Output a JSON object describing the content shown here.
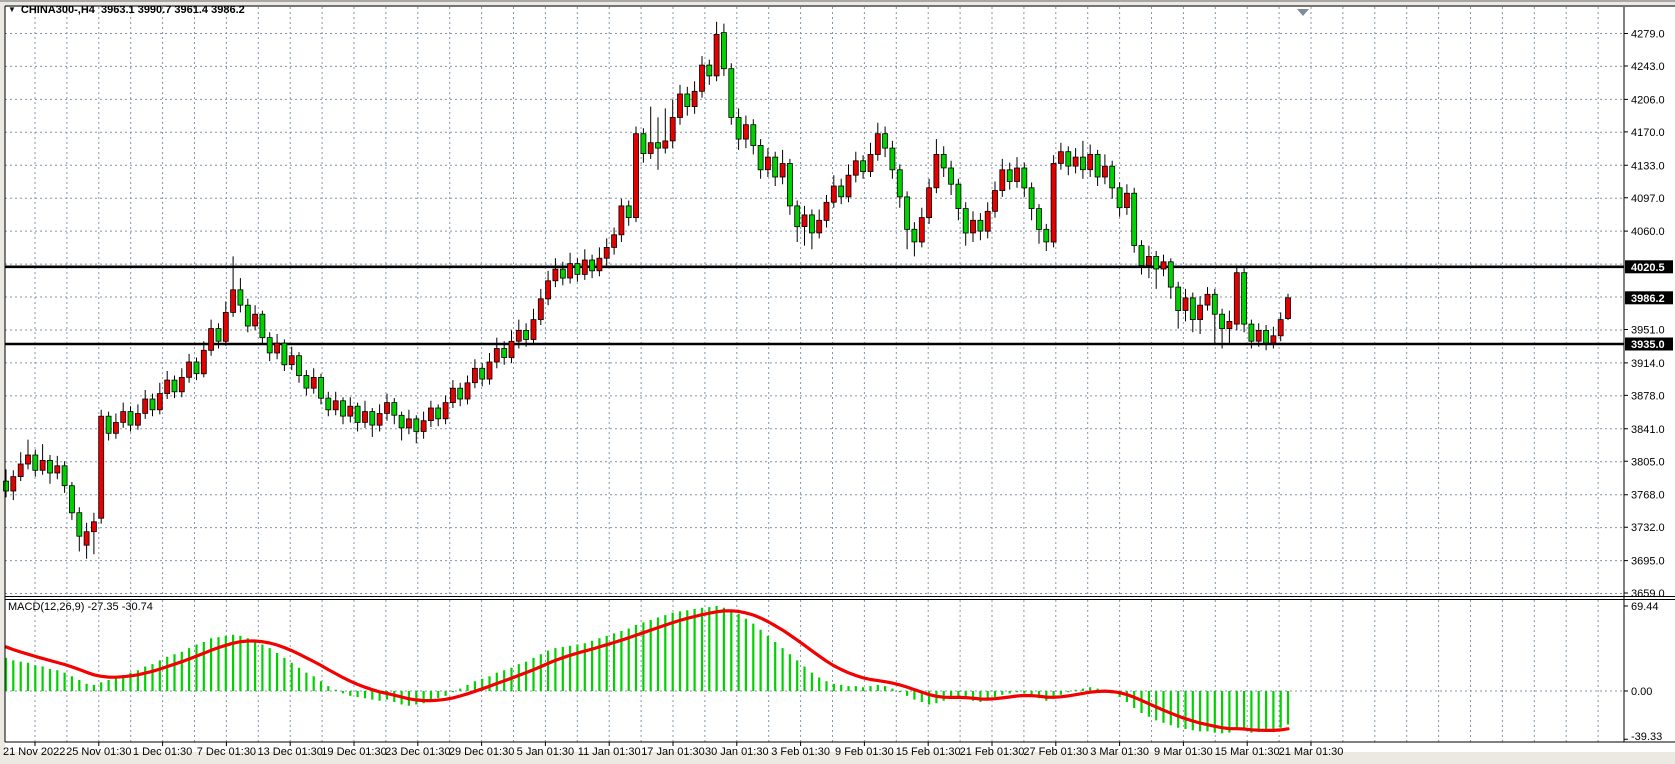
{
  "window": {
    "title": "CHINA300-,H4  3963.1 3990.7 3961.4 3986.2",
    "symbol": "CHINA300-",
    "timeframe": "H4",
    "last_ohlc": {
      "open": 3963.1,
      "high": 3990.7,
      "low": 3961.4,
      "close": 3986.2
    }
  },
  "indicator_panel": {
    "label": "MACD(12,26,9) -27.35 -30.74",
    "macd_value": -27.35,
    "signal_value": -30.74,
    "axis_ticks": [
      {
        "label": "69.44",
        "value": 69.44
      },
      {
        "label": "0.00",
        "value": 0
      },
      {
        "label": "-39.33",
        "value": -39.33
      }
    ]
  },
  "price_axis": {
    "ticks": [
      {
        "label": "4279.0",
        "value": 4279
      },
      {
        "label": "4243.0",
        "value": 4243
      },
      {
        "label": "4206.0",
        "value": 4206
      },
      {
        "label": "4170.0",
        "value": 4170
      },
      {
        "label": "4133.0",
        "value": 4133
      },
      {
        "label": "4097.0",
        "value": 4097
      },
      {
        "label": "4060.0",
        "value": 4060
      },
      {
        "label": "3951.0",
        "value": 3951
      },
      {
        "label": "3914.0",
        "value": 3914
      },
      {
        "label": "3878.0",
        "value": 3878
      },
      {
        "label": "3841.0",
        "value": 3841
      },
      {
        "label": "3805.0",
        "value": 3805
      },
      {
        "label": "3768.0",
        "value": 3768
      },
      {
        "label": "3732.0",
        "value": 3732
      },
      {
        "label": "3695.0",
        "value": 3695
      },
      {
        "label": "3659.0",
        "value": 3659
      }
    ],
    "badges": [
      {
        "label": "4020.5",
        "value": 4020.5,
        "kind": "hline"
      },
      {
        "label": "3986.2",
        "value": 3986.2,
        "kind": "bid"
      },
      {
        "label": "3935.0",
        "value": 3935.0,
        "kind": "hline"
      }
    ]
  },
  "time_axis": {
    "labels": [
      "21 Nov 2022",
      "25 Nov 01:30",
      "1 Dec 01:30",
      "7 Dec 01:30",
      "13 Dec 01:30",
      "19 Dec 01:30",
      "23 Dec 01:30",
      "29 Dec 01:30",
      "5 Jan 01:30",
      "11 Jan 01:30",
      "17 Jan 01:30",
      "30 Jan 01:30",
      "3 Feb 01:30",
      "9 Feb 01:30",
      "15 Feb 01:30",
      "21 Feb 01:30",
      "27 Feb 01:30",
      "3 Mar 01:30",
      "9 Mar 01:30",
      "15 Mar 01:30",
      "21 Mar 01:30"
    ]
  },
  "colors": {
    "up_body": "#e60000",
    "down_body": "#00d200",
    "wick": "#000000",
    "grid": "#8496a8",
    "frame": "#ece9e2",
    "panel_bg": "#ffffff",
    "hline": "#000000",
    "badge_bg": "#000000",
    "badge_text": "#ffffff",
    "histogram": "#00d200",
    "signal_line": "#f30000",
    "shift_marker": "#7f8b99",
    "border": "#000000"
  },
  "chart_data": {
    "type": "candlestick",
    "title": "CHINA300- H4 candlestick chart with MACD(12,26,9)",
    "symbol": "CHINA300-",
    "timeframe": "H4",
    "ylim": [
      3658.5,
      4305
    ],
    "grid": true,
    "price_grid": [
      4279,
      4242.5,
      4206,
      4169.5,
      4133,
      4096.5,
      4060,
      4023.5,
      3987,
      3950.5,
      3914,
      3877.5,
      3841,
      3804.5,
      3768,
      3731.5,
      3695,
      3658.5
    ],
    "hlines": [
      4020.5,
      3935.0
    ],
    "last_price": 3986.2,
    "candles": [
      [
        3783,
        3796,
        3765,
        3772
      ],
      [
        3772,
        3795,
        3762,
        3788
      ],
      [
        3788,
        3815,
        3783,
        3802
      ],
      [
        3802,
        3829,
        3796,
        3812
      ],
      [
        3812,
        3818,
        3788,
        3795
      ],
      [
        3795,
        3824,
        3790,
        3806
      ],
      [
        3806,
        3812,
        3780,
        3792
      ],
      [
        3792,
        3811,
        3785,
        3800
      ],
      [
        3800,
        3805,
        3770,
        3778
      ],
      [
        3778,
        3782,
        3740,
        3748
      ],
      [
        3748,
        3754,
        3705,
        3722
      ],
      [
        3712,
        3737,
        3697,
        3727
      ],
      [
        3727,
        3748,
        3702,
        3738
      ],
      [
        3742,
        3862,
        3736,
        3855
      ],
      [
        3855,
        3860,
        3828,
        3836
      ],
      [
        3836,
        3858,
        3830,
        3848
      ],
      [
        3848,
        3870,
        3842,
        3860
      ],
      [
        3860,
        3866,
        3838,
        3845
      ],
      [
        3845,
        3868,
        3840,
        3858
      ],
      [
        3858,
        3884,
        3852,
        3874
      ],
      [
        3874,
        3880,
        3855,
        3862
      ],
      [
        3862,
        3892,
        3857,
        3880
      ],
      [
        3880,
        3905,
        3874,
        3895
      ],
      [
        3895,
        3900,
        3875,
        3882
      ],
      [
        3882,
        3908,
        3876,
        3898
      ],
      [
        3898,
        3924,
        3892,
        3915
      ],
      [
        3915,
        3920,
        3895,
        3902
      ],
      [
        3902,
        3938,
        3898,
        3928
      ],
      [
        3928,
        3962,
        3922,
        3952
      ],
      [
        3952,
        3958,
        3930,
        3938
      ],
      [
        3938,
        3982,
        3933,
        3970
      ],
      [
        3970,
        4032,
        3965,
        3995
      ],
      [
        3995,
        4008,
        3970,
        3978
      ],
      [
        3978,
        3985,
        3948,
        3955
      ],
      [
        3955,
        3978,
        3950,
        3968
      ],
      [
        3968,
        3972,
        3935,
        3942
      ],
      [
        3942,
        3948,
        3916,
        3925
      ],
      [
        3925,
        3946,
        3918,
        3936
      ],
      [
        3936,
        3940,
        3905,
        3912
      ],
      [
        3912,
        3932,
        3906,
        3922
      ],
      [
        3922,
        3926,
        3892,
        3900
      ],
      [
        3900,
        3906,
        3878,
        3886
      ],
      [
        3886,
        3908,
        3880,
        3898
      ],
      [
        3898,
        3902,
        3868,
        3875
      ],
      [
        3875,
        3882,
        3855,
        3862
      ],
      [
        3862,
        3882,
        3856,
        3872
      ],
      [
        3872,
        3876,
        3846,
        3855
      ],
      [
        3855,
        3876,
        3848,
        3866
      ],
      [
        3866,
        3870,
        3838,
        3848
      ],
      [
        3848,
        3872,
        3842,
        3860
      ],
      [
        3860,
        3864,
        3832,
        3845
      ],
      [
        3845,
        3868,
        3838,
        3858
      ],
      [
        3858,
        3880,
        3850,
        3870
      ],
      [
        3870,
        3875,
        3846,
        3856
      ],
      [
        3856,
        3860,
        3828,
        3842
      ],
      [
        3842,
        3862,
        3835,
        3852
      ],
      [
        3852,
        3856,
        3825,
        3838
      ],
      [
        3838,
        3860,
        3830,
        3850
      ],
      [
        3850,
        3872,
        3843,
        3864
      ],
      [
        3864,
        3868,
        3844,
        3852
      ],
      [
        3852,
        3878,
        3846,
        3870
      ],
      [
        3870,
        3895,
        3864,
        3886
      ],
      [
        3886,
        3892,
        3866,
        3874
      ],
      [
        3874,
        3900,
        3868,
        3892
      ],
      [
        3892,
        3918,
        3886,
        3908
      ],
      [
        3908,
        3914,
        3888,
        3896
      ],
      [
        3896,
        3925,
        3890,
        3915
      ],
      [
        3915,
        3942,
        3908,
        3930
      ],
      [
        3930,
        3938,
        3912,
        3920
      ],
      [
        3920,
        3950,
        3914,
        3938
      ],
      [
        3938,
        3962,
        3930,
        3950
      ],
      [
        3950,
        3958,
        3932,
        3940
      ],
      [
        3940,
        3974,
        3935,
        3962
      ],
      [
        3962,
        3996,
        3956,
        3985
      ],
      [
        3985,
        4016,
        3978,
        4005
      ],
      [
        4005,
        4030,
        3998,
        4018
      ],
      [
        4018,
        4026,
        4000,
        4008
      ],
      [
        4008,
        4036,
        4002,
        4024
      ],
      [
        4024,
        4030,
        4004,
        4012
      ],
      [
        4012,
        4040,
        4006,
        4028
      ],
      [
        4028,
        4034,
        4008,
        4016
      ],
      [
        4016,
        4042,
        4010,
        4030
      ],
      [
        4030,
        4052,
        4022,
        4042
      ],
      [
        4042,
        4064,
        4034,
        4056
      ],
      [
        4056,
        4096,
        4048,
        4088
      ],
      [
        4088,
        4094,
        4066,
        4075
      ],
      [
        4075,
        4176,
        4070,
        4168
      ],
      [
        4168,
        4174,
        4136,
        4146
      ],
      [
        4146,
        4198,
        4140,
        4158
      ],
      [
        4158,
        4186,
        4128,
        4152
      ],
      [
        4152,
        4196,
        4146,
        4160
      ],
      [
        4160,
        4206,
        4152,
        4186
      ],
      [
        4186,
        4222,
        4178,
        4212
      ],
      [
        4212,
        4220,
        4188,
        4198
      ],
      [
        4198,
        4226,
        4190,
        4215
      ],
      [
        4215,
        4254,
        4208,
        4244
      ],
      [
        4244,
        4250,
        4222,
        4232
      ],
      [
        4232,
        4292,
        4226,
        4278
      ],
      [
        4280,
        4290,
        4232,
        4240
      ],
      [
        4240,
        4246,
        4178,
        4186
      ],
      [
        4186,
        4196,
        4150,
        4162
      ],
      [
        4162,
        4188,
        4152,
        4178
      ],
      [
        4178,
        4184,
        4145,
        4155
      ],
      [
        4155,
        4162,
        4118,
        4128
      ],
      [
        4128,
        4152,
        4120,
        4142
      ],
      [
        4142,
        4148,
        4110,
        4120
      ],
      [
        4120,
        4150,
        4112,
        4135
      ],
      [
        4135,
        4140,
        4078,
        4088
      ],
      [
        4088,
        4094,
        4048,
        4065
      ],
      [
        4065,
        4088,
        4044,
        4078
      ],
      [
        4078,
        4084,
        4040,
        4058
      ],
      [
        4058,
        4084,
        4052,
        4072
      ],
      [
        4072,
        4100,
        4064,
        4092
      ],
      [
        4092,
        4122,
        4086,
        4110
      ],
      [
        4110,
        4118,
        4090,
        4098
      ],
      [
        4098,
        4134,
        4092,
        4122
      ],
      [
        4122,
        4148,
        4114,
        4138
      ],
      [
        4138,
        4144,
        4118,
        4126
      ],
      [
        4126,
        4158,
        4120,
        4145
      ],
      [
        4145,
        4180,
        4138,
        4168
      ],
      [
        4168,
        4176,
        4142,
        4152
      ],
      [
        4152,
        4160,
        4118,
        4128
      ],
      [
        4128,
        4134,
        4086,
        4098
      ],
      [
        4098,
        4104,
        4040,
        4062
      ],
      [
        4062,
        4070,
        4032,
        4048
      ],
      [
        4048,
        4086,
        4042,
        4075
      ],
      [
        4075,
        4118,
        4068,
        4108
      ],
      [
        4108,
        4162,
        4102,
        4145
      ],
      [
        4145,
        4154,
        4120,
        4130
      ],
      [
        4130,
        4138,
        4100,
        4112
      ],
      [
        4112,
        4118,
        4072,
        4085
      ],
      [
        4085,
        4092,
        4044,
        4058
      ],
      [
        4058,
        4082,
        4048,
        4072
      ],
      [
        4072,
        4080,
        4050,
        4060
      ],
      [
        4060,
        4092,
        4052,
        4082
      ],
      [
        4082,
        4115,
        4075,
        4105
      ],
      [
        4105,
        4140,
        4098,
        4128
      ],
      [
        4128,
        4136,
        4106,
        4115
      ],
      [
        4115,
        4142,
        4108,
        4130
      ],
      [
        4130,
        4136,
        4098,
        4108
      ],
      [
        4108,
        4114,
        4072,
        4085
      ],
      [
        4085,
        4090,
        4046,
        4062
      ],
      [
        4062,
        4068,
        4038,
        4048
      ],
      [
        4048,
        4144,
        4042,
        4135
      ],
      [
        4135,
        4158,
        4128,
        4148
      ],
      [
        4148,
        4154,
        4122,
        4132
      ],
      [
        4132,
        4152,
        4124,
        4142
      ],
      [
        4142,
        4160,
        4118,
        4128
      ],
      [
        4128,
        4156,
        4120,
        4145
      ],
      [
        4145,
        4150,
        4110,
        4120
      ],
      [
        4120,
        4145,
        4112,
        4132
      ],
      [
        4132,
        4138,
        4096,
        4108
      ],
      [
        4108,
        4114,
        4076,
        4086
      ],
      [
        4086,
        4112,
        4078,
        4102
      ],
      [
        4102,
        4108,
        4036,
        4044
      ],
      [
        4044,
        4050,
        4012,
        4022
      ],
      [
        4022,
        4044,
        4008,
        4032
      ],
      [
        4032,
        4038,
        3996,
        4018
      ],
      [
        4018,
        4034,
        4010,
        4026
      ],
      [
        4026,
        4030,
        3985,
        3998
      ],
      [
        3998,
        4004,
        3952,
        3972
      ],
      [
        3972,
        3996,
        3960,
        3986
      ],
      [
        3986,
        3992,
        3948,
        3962
      ],
      [
        3962,
        3988,
        3946,
        3978
      ],
      [
        3978,
        3998,
        3972,
        3990
      ],
      [
        3990,
        3996,
        3935,
        3968
      ],
      [
        3968,
        3974,
        3930,
        3952
      ],
      [
        3952,
        3972,
        3936,
        3960
      ],
      [
        3957,
        4022,
        3950,
        4014
      ],
      [
        4014,
        4020,
        3948,
        3957
      ],
      [
        3957,
        3962,
        3930,
        3938
      ],
      [
        3938,
        3958,
        3932,
        3950
      ],
      [
        3950,
        3956,
        3928,
        3936
      ],
      [
        3936,
        3954,
        3930,
        3944
      ],
      [
        3944,
        3970,
        3938,
        3962
      ],
      [
        3963.1,
        3990.7,
        3961.4,
        3986.2
      ]
    ],
    "macd": {
      "params": [
        12,
        26,
        9
      ],
      "axis": {
        "max": 69.44,
        "zero": 0.0,
        "min": -39.33
      },
      "last_macd": -27.35,
      "last_signal": -30.74,
      "signal_period": 9,
      "signal_start": 36,
      "histogram": [
        27,
        25,
        24,
        23,
        21,
        20,
        18,
        17,
        15,
        12,
        9,
        6,
        5,
        7,
        9,
        11,
        13,
        15,
        17,
        20,
        22,
        25,
        28,
        30,
        32,
        35,
        38,
        40,
        43,
        44,
        45,
        46,
        45,
        43,
        41,
        38,
        35,
        31,
        27,
        23,
        19,
        15,
        12,
        8,
        4,
        1,
        -2,
        -4,
        -5,
        -6,
        -7,
        -8,
        -7,
        -9,
        -11,
        -12,
        -11,
        -10,
        -8,
        -6,
        -4,
        -1,
        2,
        5,
        8,
        10,
        12,
        15,
        17,
        19,
        22,
        24,
        27,
        30,
        33,
        35,
        36,
        37,
        38,
        39,
        41,
        43,
        45,
        47,
        49,
        51,
        54,
        56,
        58,
        60,
        62,
        64,
        65,
        66,
        67,
        68,
        68.5,
        69.4,
        68,
        66,
        63,
        59,
        55,
        50,
        45,
        40,
        35,
        30,
        25,
        20,
        15,
        11,
        8,
        6,
        5,
        4,
        4,
        3,
        4,
        5,
        4,
        2,
        -1,
        -4,
        -7,
        -9,
        -11,
        -10,
        -8,
        -6,
        -5,
        -6,
        -8,
        -9,
        -7,
        -5,
        -3,
        -2,
        -1,
        -2,
        -4,
        -6,
        -8,
        -6,
        -3,
        -1,
        1,
        2,
        3,
        2,
        1,
        -2,
        -5,
        -9,
        -14,
        -18,
        -21,
        -24,
        -26,
        -28,
        -30,
        -31,
        -32,
        -33,
        -33,
        -34,
        -34.5,
        -34,
        -31,
        -32,
        -34,
        -33.5,
        -33,
        -32,
        -30,
        -27.35
      ]
    }
  }
}
